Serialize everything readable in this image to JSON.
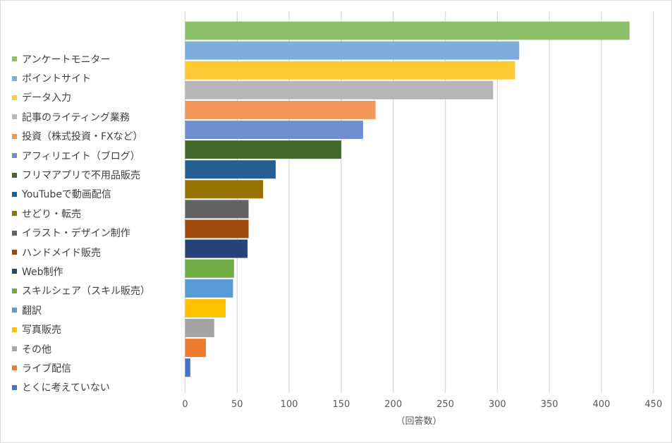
{
  "chart_data": {
    "type": "bar",
    "orientation": "horizontal",
    "categories": [
      "アンケートモニター",
      "ポイントサイト",
      "データ入力",
      "記事のライティング業務",
      "投資（株式投資・FXなど）",
      "アフィリエイト（ブログ）",
      "フリマアプリで不用品販売",
      "YouTubeで動画配信",
      "せどり・転売",
      "イラスト・デザイン制作",
      "ハンドメイド販売",
      "Web制作",
      "スキルシェア（スキル販売）",
      "翻訳",
      "写真販売",
      "その他",
      "ライブ配信",
      "とくに考えていない"
    ],
    "values": [
      427,
      321,
      317,
      296,
      183,
      171,
      150,
      87,
      75,
      61,
      61,
      60,
      47,
      46,
      39,
      28,
      20,
      5
    ],
    "colors": [
      "#8DC169",
      "#7EAEDC",
      "#FFCA33",
      "#B7B7B7",
      "#F1975A",
      "#6F8FCF",
      "#43682B",
      "#255E91",
      "#997300",
      "#636363",
      "#9E480E",
      "#264478",
      "#70AD47",
      "#5B9BD5",
      "#FFC000",
      "#A5A5A5",
      "#ED7D31",
      "#4472C4"
    ],
    "xlabel": "（回答数）",
    "xlim": [
      0,
      450
    ],
    "xticks": [
      "0",
      "50",
      "100",
      "150",
      "200",
      "250",
      "300",
      "350",
      "400",
      "450"
    ],
    "grid": true,
    "legend": "left"
  }
}
